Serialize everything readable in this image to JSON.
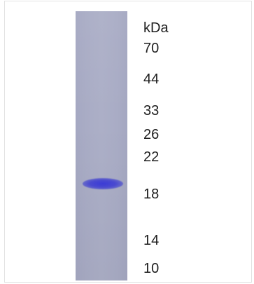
{
  "gel": {
    "unit_label": "kDa",
    "markers": [
      "70",
      "44",
      "33",
      "26",
      "22",
      "18",
      "14",
      "10"
    ],
    "lane_color": "#aaadc6",
    "band_color": "#3b3bd6"
  }
}
